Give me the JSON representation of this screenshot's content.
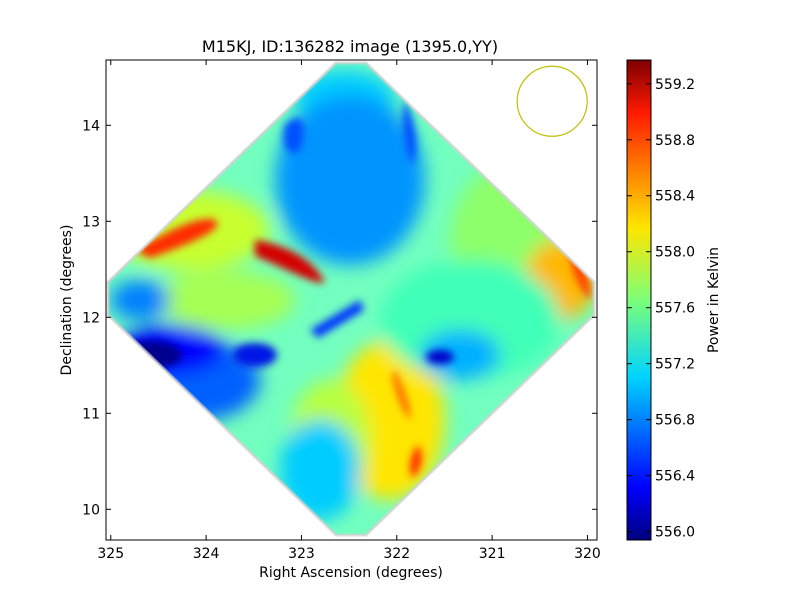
{
  "chart_data": {
    "type": "heatmap",
    "title": "M15KJ, ID:136282 image (1395.0,YY)",
    "xlabel": "Right Ascension (degrees)",
    "ylabel": "Declination (degrees)",
    "xlim": [
      325.05,
      319.9
    ],
    "ylim": [
      9.68,
      14.68
    ],
    "x_ticks": [
      "325",
      "324",
      "323",
      "322",
      "321",
      "320"
    ],
    "y_ticks": [
      "10",
      "11",
      "12",
      "13",
      "14"
    ],
    "colorbar": {
      "label": "Power in Kelvin",
      "range": [
        555.94,
        559.37
      ],
      "ticks": [
        "556.0",
        "556.4",
        "556.8",
        "557.2",
        "557.6",
        "558.0",
        "558.4",
        "558.8",
        "559.2"
      ],
      "colormap": "jet"
    },
    "beam": {
      "ra": 320.37,
      "dec": 14.25,
      "shape": "circle",
      "color": "#bfbf00"
    },
    "footprint": "diamond centred near RA 322.5, Dec 12.2; ~557.5 K background with a ~556.9 K central lobe, a ~555.9 K minimum near RA 324.5, Dec 11.6 and maxima near 559.0 K along the upper-left edge"
  }
}
